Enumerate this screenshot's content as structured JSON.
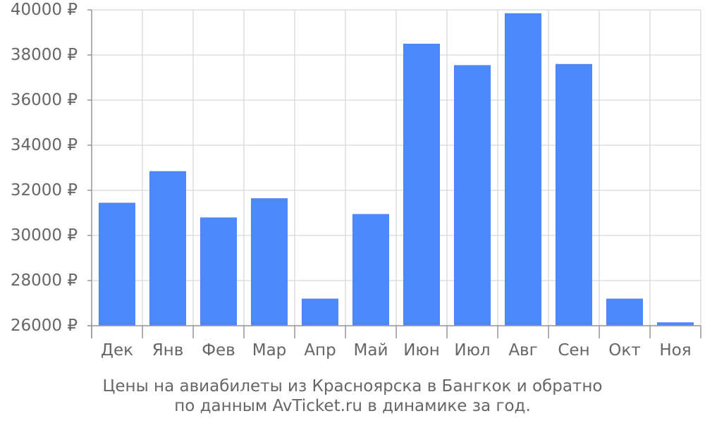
{
  "caption": {
    "line1": "Цены на авиабилеты из Красноярска в Бангкок и обратно",
    "line2": "по данным AvTicket.ru в динамике за год."
  },
  "colors": {
    "bar": "#4d88fa",
    "grid": "#dddddd",
    "axis": "#999999",
    "text": "#666666"
  },
  "chart_data": {
    "type": "bar",
    "categories": [
      "Дек",
      "Янв",
      "Фев",
      "Мар",
      "Апр",
      "Май",
      "Июн",
      "Июл",
      "Авг",
      "Сен",
      "Окт",
      "Ноя"
    ],
    "values": [
      31450,
      32850,
      30800,
      31650,
      27200,
      30950,
      38500,
      37550,
      39850,
      37600,
      27200,
      26150
    ],
    "ylim": [
      26000,
      40000
    ],
    "yticks": [
      26000,
      28000,
      30000,
      32000,
      34000,
      36000,
      38000,
      40000
    ],
    "ytick_labels": [
      "26000 ₽",
      "28000 ₽",
      "30000 ₽",
      "32000 ₽",
      "34000 ₽",
      "36000 ₽",
      "38000 ₽",
      "40000 ₽"
    ],
    "grid": true,
    "title": "",
    "xlabel": "",
    "ylabel": ""
  }
}
